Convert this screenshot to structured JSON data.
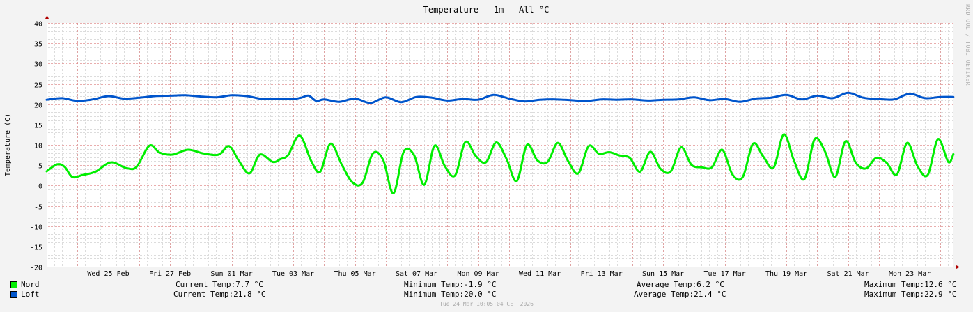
{
  "chart_data": {
    "type": "line",
    "title": "Temperature - 1m - All °C",
    "ylabel": "Temperature (C)",
    "xlabel": "",
    "ylim": [
      -20,
      40
    ],
    "yticks": [
      -20,
      -15,
      -10,
      -5,
      0,
      5,
      10,
      15,
      20,
      25,
      30,
      35,
      40
    ],
    "x_start": "2026-02-23",
    "x_end": "2026-03-24",
    "xtick_labels": [
      "Wed 25 Feb",
      "Fri 27 Feb",
      "Sun 01 Mar",
      "Tue 03 Mar",
      "Thu 05 Mar",
      "Sat 07 Mar",
      "Mon 09 Mar",
      "Wed 11 Mar",
      "Fri 13 Mar",
      "Sun 15 Mar",
      "Tue 17 Mar",
      "Thu 19 Mar",
      "Sat 21 Mar",
      "Mon 23 Mar"
    ],
    "xtick_dates": [
      "2026-02-25",
      "2026-02-27",
      "2026-03-01",
      "2026-03-03",
      "2026-03-05",
      "2026-03-07",
      "2026-03-09",
      "2026-03-11",
      "2026-03-13",
      "2026-03-15",
      "2026-03-17",
      "2026-03-19",
      "2026-03-21",
      "2026-03-23"
    ],
    "grid": true,
    "legend_position": "bottom-left",
    "series": [
      {
        "name": "Nord",
        "color": "#00ee00",
        "x": [
          "2026-02-23 00:00",
          "2026-02-23 08:00",
          "2026-02-23 14:00",
          "2026-02-23 20:00",
          "2026-02-24 04:00",
          "2026-02-24 14:00",
          "2026-02-25 02:00",
          "2026-02-25 14:00",
          "2026-02-25 22:00",
          "2026-02-26 08:00",
          "2026-02-26 16:00",
          "2026-02-27 02:00",
          "2026-02-27 14:00",
          "2026-02-28 02:00",
          "2026-02-28 14:00",
          "2026-02-28 22:00",
          "2026-03-01 06:00",
          "2026-03-01 14:00",
          "2026-03-01 22:00",
          "2026-03-02 08:00",
          "2026-03-02 14:00",
          "2026-03-02 20:00",
          "2026-03-03 05:00",
          "2026-03-03 14:00",
          "2026-03-03 21:00",
          "2026-03-04 05:00",
          "2026-03-04 14:00",
          "2026-03-04 22:00",
          "2026-03-05 06:00",
          "2026-03-05 14:00",
          "2026-03-05 22:00",
          "2026-03-06 06:00",
          "2026-03-06 14:00",
          "2026-03-06 22:00",
          "2026-03-07 06:00",
          "2026-03-07 14:00",
          "2026-03-07 22:00",
          "2026-03-08 06:00",
          "2026-03-08 14:00",
          "2026-03-08 22:00",
          "2026-03-09 06:00",
          "2026-03-09 14:00",
          "2026-03-09 22:00",
          "2026-03-10 06:00",
          "2026-03-10 14:00",
          "2026-03-10 22:00",
          "2026-03-11 06:00",
          "2026-03-11 14:00",
          "2026-03-11 22:00",
          "2026-03-12 06:00",
          "2026-03-12 14:00",
          "2026-03-12 22:00",
          "2026-03-13 06:00",
          "2026-03-13 14:00",
          "2026-03-13 22:00",
          "2026-03-14 06:00",
          "2026-03-14 14:00",
          "2026-03-14 22:00",
          "2026-03-15 06:00",
          "2026-03-15 14:00",
          "2026-03-15 22:00",
          "2026-03-16 06:00",
          "2026-03-16 14:00",
          "2026-03-16 22:00",
          "2026-03-17 06:00",
          "2026-03-17 14:00",
          "2026-03-17 22:00",
          "2026-03-18 06:00",
          "2026-03-18 14:00",
          "2026-03-18 22:00",
          "2026-03-19 06:00",
          "2026-03-19 14:00",
          "2026-03-19 22:00",
          "2026-03-20 06:00",
          "2026-03-20 14:00",
          "2026-03-20 22:00",
          "2026-03-21 06:00",
          "2026-03-21 14:00",
          "2026-03-21 22:00",
          "2026-03-22 06:00",
          "2026-03-22 14:00",
          "2026-03-22 22:00",
          "2026-03-23 06:00",
          "2026-03-23 14:00",
          "2026-03-23 22:00",
          "2026-03-24 06:00",
          "2026-03-24 10:00"
        ],
        "values": [
          3.5,
          5.2,
          4.6,
          2.1,
          2.6,
          3.4,
          5.7,
          4.3,
          4.6,
          9.8,
          8.1,
          7.6,
          8.8,
          7.9,
          7.6,
          9.7,
          5.9,
          3.0,
          7.6,
          5.8,
          6.5,
          7.5,
          12.3,
          6.0,
          3.4,
          10.3,
          5.0,
          0.8,
          0.7,
          7.9,
          6.3,
          -1.9,
          8.3,
          7.5,
          0.2,
          9.8,
          4.8,
          2.5,
          10.7,
          7.3,
          5.7,
          10.6,
          6.6,
          1.1,
          10.0,
          6.2,
          5.8,
          10.5,
          6.0,
          3.0,
          9.7,
          7.8,
          8.2,
          7.4,
          6.8,
          3.4,
          8.3,
          4.1,
          3.5,
          9.4,
          5.1,
          4.5,
          4.5,
          8.8,
          2.7,
          2.1,
          10.3,
          7.1,
          4.4,
          12.6,
          6.0,
          1.6,
          11.4,
          8.4,
          2.1,
          10.9,
          5.6,
          4.2,
          6.8,
          5.6,
          2.7,
          10.5,
          4.8,
          2.6,
          11.4,
          5.8,
          7.7
        ]
      },
      {
        "name": "Loft",
        "color": "#0055cc",
        "x": [
          "2026-02-23 00:00",
          "2026-02-23 12:00",
          "2026-02-24 00:00",
          "2026-02-24 12:00",
          "2026-02-25 00:00",
          "2026-02-25 12:00",
          "2026-02-26 00:00",
          "2026-02-26 12:00",
          "2026-02-27 00:00",
          "2026-02-27 12:00",
          "2026-02-28 00:00",
          "2026-02-28 12:00",
          "2026-03-01 00:00",
          "2026-03-01 12:00",
          "2026-03-02 00:00",
          "2026-03-02 12:00",
          "2026-03-03 00:00",
          "2026-03-03 06:00",
          "2026-03-03 12:00",
          "2026-03-03 18:00",
          "2026-03-04 00:00",
          "2026-03-04 12:00",
          "2026-03-05 00:00",
          "2026-03-05 12:00",
          "2026-03-06 00:00",
          "2026-03-06 12:00",
          "2026-03-07 00:00",
          "2026-03-07 12:00",
          "2026-03-08 00:00",
          "2026-03-08 12:00",
          "2026-03-09 00:00",
          "2026-03-09 12:00",
          "2026-03-10 00:00",
          "2026-03-10 12:00",
          "2026-03-11 00:00",
          "2026-03-11 12:00",
          "2026-03-12 00:00",
          "2026-03-12 12:00",
          "2026-03-13 00:00",
          "2026-03-13 12:00",
          "2026-03-14 00:00",
          "2026-03-14 12:00",
          "2026-03-15 00:00",
          "2026-03-15 12:00",
          "2026-03-16 00:00",
          "2026-03-16 12:00",
          "2026-03-17 00:00",
          "2026-03-17 12:00",
          "2026-03-18 00:00",
          "2026-03-18 12:00",
          "2026-03-19 00:00",
          "2026-03-19 12:00",
          "2026-03-20 00:00",
          "2026-03-20 12:00",
          "2026-03-21 00:00",
          "2026-03-21 12:00",
          "2026-03-22 00:00",
          "2026-03-22 12:00",
          "2026-03-23 00:00",
          "2026-03-23 12:00",
          "2026-03-24 00:00",
          "2026-03-24 10:00"
        ],
        "values": [
          21.1,
          21.5,
          20.8,
          21.2,
          22.0,
          21.4,
          21.6,
          22.0,
          22.1,
          22.2,
          21.9,
          21.7,
          22.2,
          22.0,
          21.3,
          21.4,
          21.3,
          21.6,
          22.1,
          20.8,
          21.2,
          20.6,
          21.4,
          20.3,
          21.7,
          20.5,
          21.8,
          21.6,
          20.9,
          21.3,
          21.1,
          22.3,
          21.4,
          20.7,
          21.1,
          21.2,
          21.0,
          20.8,
          21.2,
          21.1,
          21.2,
          20.9,
          21.1,
          21.2,
          21.7,
          21.0,
          21.3,
          20.6,
          21.4,
          21.6,
          22.3,
          21.2,
          22.1,
          21.5,
          22.8,
          21.6,
          21.3,
          21.2,
          22.6,
          21.5,
          21.8,
          21.8
        ]
      }
    ]
  },
  "legend": [
    {
      "name": "Nord",
      "color": "#00ee00",
      "current": "Current Temp:7.7 °C",
      "minimum": "Minimum Temp:-1.9 °C",
      "average": "Average Temp:6.2 °C",
      "maximum": "Maximum Temp:12.6 °C"
    },
    {
      "name": "Loft",
      "color": "#0055cc",
      "current": "Current Temp:21.8 °C",
      "minimum": "Minimum Temp:20.0 °C",
      "average": "Average Temp:21.4 °C",
      "maximum": "Maximum Temp:22.9 °C"
    }
  ],
  "footer": "Tue 24 Mar 10:05:04 CET 2026",
  "watermark": "RRDTOOL / TOBI OETIKER"
}
